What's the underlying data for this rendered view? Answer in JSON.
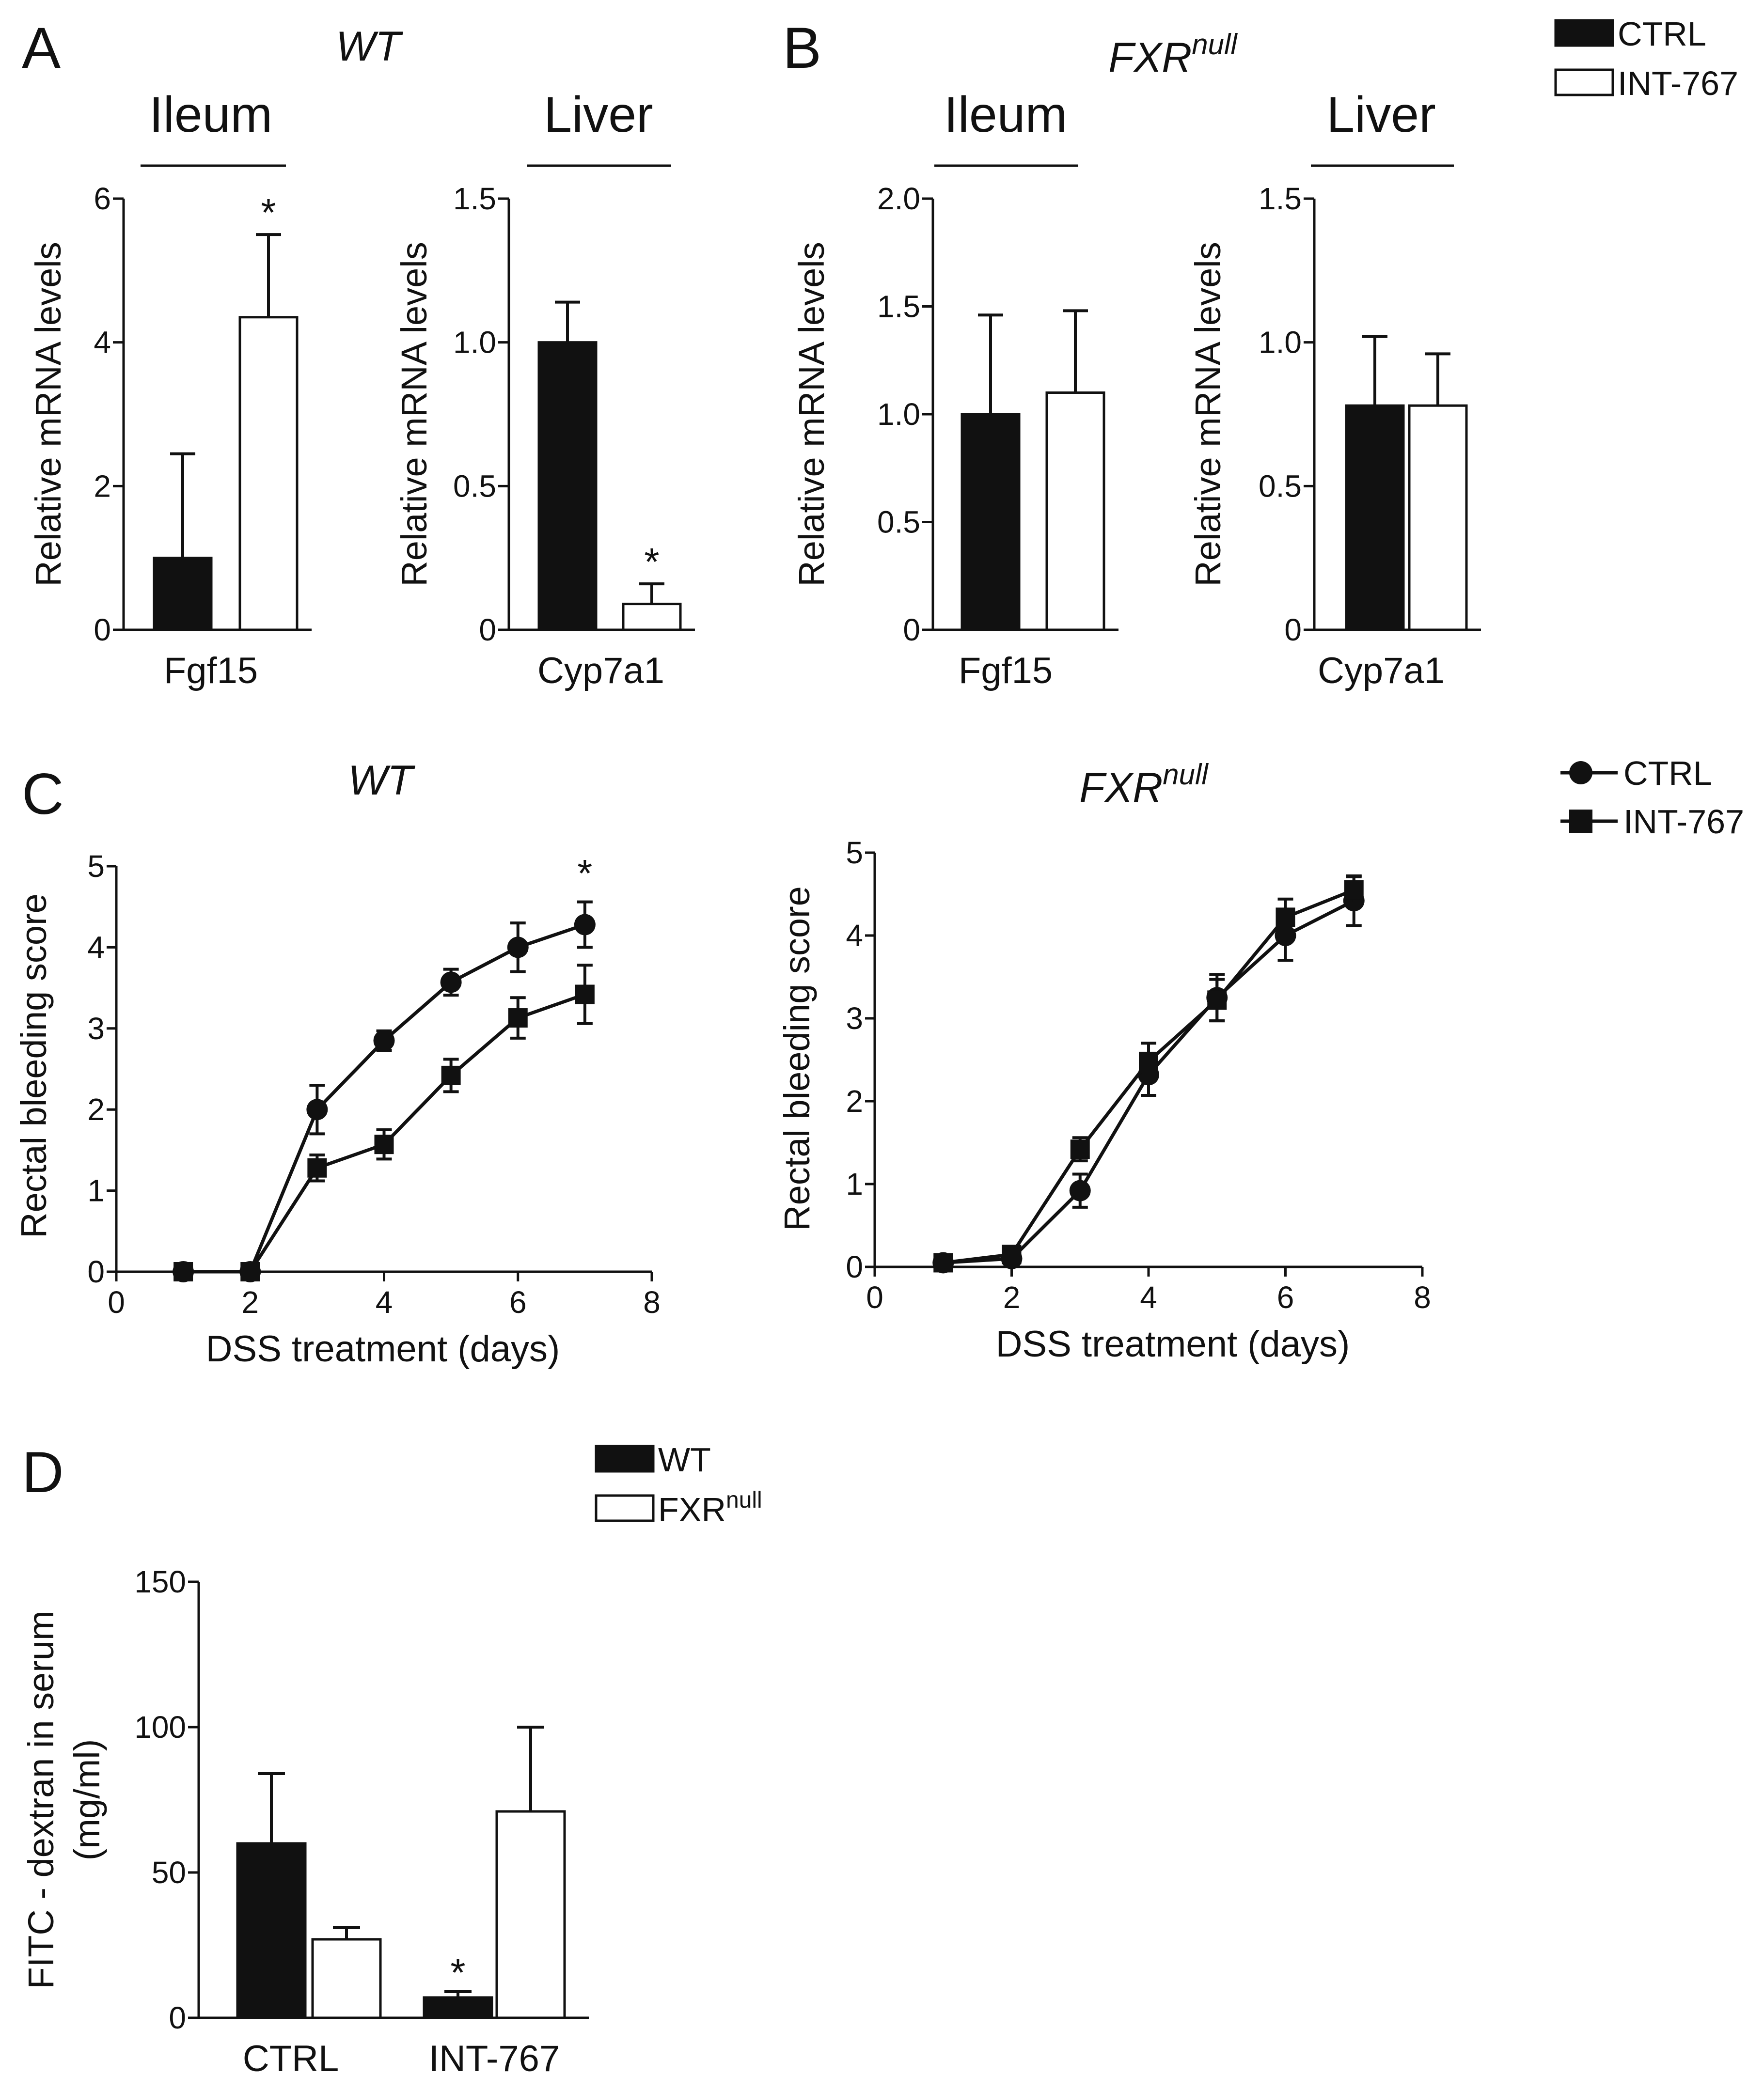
{
  "panels": {
    "A": "A",
    "B": "B",
    "C": "C",
    "D": "D"
  },
  "legend_ab": {
    "ctrl": "CTRL",
    "int": "INT-767"
  },
  "legend_c": {
    "ctrl": "CTRL",
    "int": "INT-767"
  },
  "legend_d": {
    "wt": "WT",
    "fxr": "FXR",
    "fxr_sup": "null"
  },
  "titles": {
    "a": "WT",
    "b": "FXR",
    "b_sup": "null",
    "c_wt": "WT",
    "c_fxr": "FXR",
    "c_fxr_sup": "null"
  },
  "tissues": {
    "ileum": "Ileum",
    "liver": "Liver"
  },
  "colors": {
    "ctrl": "#111111",
    "int": "#ffffff",
    "axis": "#111111"
  },
  "chart_data": [
    {
      "id": "a1",
      "type": "bar",
      "title": "WT",
      "tissue": "Ileum",
      "ylabel": "Relative mRNA levels",
      "xlabel": "Fgf15",
      "ylim": [
        0,
        6
      ],
      "ticks": [
        "0",
        "2",
        "4",
        "6"
      ],
      "series": [
        {
          "name": "CTRL",
          "value": 1.0,
          "err": 1.45
        },
        {
          "name": "INT-767",
          "value": 4.35,
          "err": 1.15,
          "star": "*"
        }
      ]
    },
    {
      "id": "a2",
      "type": "bar",
      "title": "WT",
      "tissue": "Liver",
      "ylabel": "Relative mRNA levels",
      "xlabel": "Cyp7a1",
      "ylim": [
        0,
        1.5
      ],
      "ticks": [
        "0",
        "0.5",
        "1.0",
        "1.5"
      ],
      "series": [
        {
          "name": "CTRL",
          "value": 1.0,
          "err": 0.14
        },
        {
          "name": "INT-767",
          "value": 0.09,
          "err": 0.07,
          "star": "*"
        }
      ]
    },
    {
      "id": "b1",
      "type": "bar",
      "title": "FXRnull",
      "tissue": "Ileum",
      "ylabel": "Relative mRNA levels",
      "xlabel": "Fgf15",
      "ylim": [
        0,
        2.0
      ],
      "ticks": [
        "0",
        "0.5",
        "1.0",
        "1.5",
        "2.0"
      ],
      "series": [
        {
          "name": "CTRL",
          "value": 1.0,
          "err": 0.46
        },
        {
          "name": "INT-767",
          "value": 1.1,
          "err": 0.38
        }
      ]
    },
    {
      "id": "b2",
      "type": "bar",
      "title": "FXRnull",
      "tissue": "Liver",
      "ylabel": "Relative mRNA levels",
      "xlabel": "Cyp7a1",
      "ylim": [
        0,
        1.5
      ],
      "ticks": [
        "0",
        "0.5",
        "1.0",
        "1.5"
      ],
      "series": [
        {
          "name": "CTRL",
          "value": 0.78,
          "err": 0.24
        },
        {
          "name": "INT-767",
          "value": 0.78,
          "err": 0.18
        }
      ]
    },
    {
      "id": "c1",
      "type": "line",
      "title": "WT",
      "xlabel": "DSS treatment (days)",
      "ylabel": "Rectal bleeding score",
      "xlim": [
        0,
        8
      ],
      "ylim": [
        0,
        5
      ],
      "xticks": [
        "0",
        "2",
        "4",
        "6",
        "8"
      ],
      "yticks": [
        "0",
        "1",
        "2",
        "3",
        "4",
        "5"
      ],
      "x": [
        1,
        2,
        3,
        4,
        5,
        6,
        7
      ],
      "series": [
        {
          "name": "CTRL",
          "marker": "circle",
          "values": [
            0,
            0,
            2.0,
            2.85,
            3.57,
            4.0,
            4.28
          ],
          "err": [
            0,
            0,
            0.3,
            0.12,
            0.16,
            0.3,
            0.28
          ]
        },
        {
          "name": "INT-767",
          "marker": "square",
          "values": [
            0,
            0,
            1.28,
            1.57,
            2.42,
            3.13,
            3.42
          ],
          "err": [
            0,
            0,
            0.16,
            0.18,
            0.2,
            0.25,
            0.36
          ]
        }
      ],
      "annotations": [
        {
          "x": 7,
          "y": 4.75,
          "text": "*"
        }
      ]
    },
    {
      "id": "c2",
      "type": "line",
      "title": "FXRnull",
      "xlabel": "DSS treatment (days)",
      "ylabel": "Rectal bleeding score",
      "xlim": [
        0,
        8
      ],
      "ylim": [
        0,
        5
      ],
      "xticks": [
        "0",
        "2",
        "4",
        "6",
        "8"
      ],
      "yticks": [
        "0",
        "1",
        "2",
        "3",
        "4",
        "5"
      ],
      "x": [
        1,
        2,
        3,
        4,
        5,
        6,
        7
      ],
      "series": [
        {
          "name": "CTRL",
          "marker": "circle",
          "values": [
            0.05,
            0.1,
            0.92,
            2.32,
            3.25,
            4.0,
            4.42
          ],
          "err": [
            0.05,
            0.05,
            0.2,
            0.25,
            0.28,
            0.3,
            0.3
          ]
        },
        {
          "name": "INT-767",
          "marker": "square",
          "values": [
            0.05,
            0.15,
            1.42,
            2.48,
            3.22,
            4.22,
            4.55
          ],
          "err": [
            0.05,
            0.08,
            0.14,
            0.22,
            0.25,
            0.22,
            0.16
          ]
        }
      ]
    },
    {
      "id": "d",
      "type": "bar",
      "ylabel_line1": "FITC - dextran in serum",
      "ylabel_line2": "(mg/ml)",
      "ylim": [
        0,
        150
      ],
      "ticks": [
        "0",
        "50",
        "100",
        "150"
      ],
      "categories": [
        "CTRL",
        "INT-767"
      ],
      "series": [
        {
          "name": "WT",
          "values": [
            60,
            7
          ],
          "err": [
            24,
            2
          ],
          "stars": [
            "",
            "*"
          ]
        },
        {
          "name": "FXRnull",
          "values": [
            27,
            71
          ],
          "err": [
            4,
            29
          ],
          "stars": [
            "",
            ""
          ]
        }
      ]
    }
  ]
}
